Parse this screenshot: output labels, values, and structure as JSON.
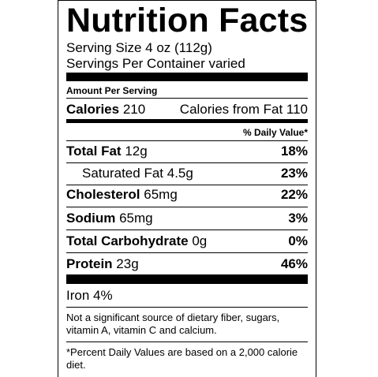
{
  "title": "Nutrition Facts",
  "serving_size": "Serving Size 4 oz (112g)",
  "servings_per_container": "Servings Per Container varied",
  "amount_per_serving": "Amount Per Serving",
  "calories": {
    "label": "Calories",
    "value": "210",
    "from_fat": "Calories from Fat 110"
  },
  "daily_value_header": "% Daily Value*",
  "nutrients": [
    {
      "name": "Total Fat",
      "amount": "12g",
      "dv": "18%"
    },
    {
      "name": "Saturated Fat",
      "amount": "4.5g",
      "dv": "23%"
    },
    {
      "name": "Cholesterol",
      "amount": "65mg",
      "dv": "22%"
    },
    {
      "name": "Sodium",
      "amount": "65mg",
      "dv": "3%"
    },
    {
      "name": "Total Carbohydrate",
      "amount": "0g",
      "dv": "0%"
    },
    {
      "name": "Protein",
      "amount": "23g",
      "dv": "46%"
    }
  ],
  "vitamins": "Iron 4%",
  "note": "Not a significant source of dietary fiber, sugars, vitamin A, vitamin C and calcium.",
  "footnote": "*Percent Daily Values are based on a 2,000 calorie diet."
}
